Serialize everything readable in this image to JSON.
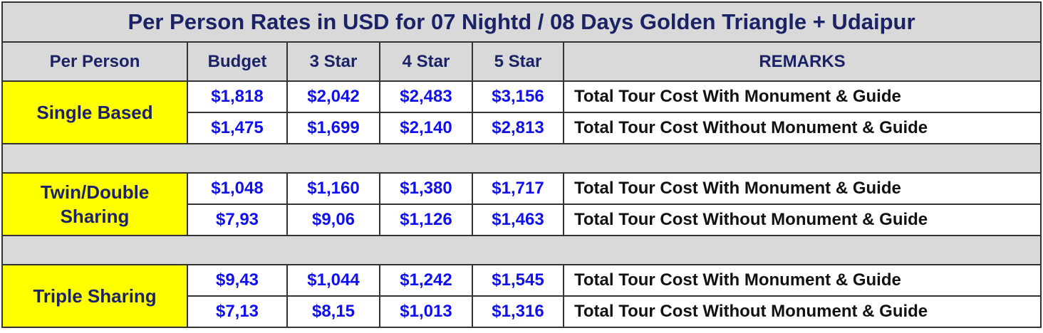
{
  "title": "Per Person Rates in USD for 07 Nightd / 08 Days Golden Triangle + Udaipur",
  "table": {
    "header": [
      "Per Person",
      "Budget",
      "3 Star",
      "4 Star",
      "5 Star",
      "REMARKS"
    ],
    "groups": [
      {
        "label": "Single Based",
        "rows": [
          [
            "$1,818",
            "$2,042",
            "$2,483",
            "$3,156",
            "Total Tour Cost With Monument & Guide"
          ],
          [
            "$1,475",
            "$1,699",
            "$2,140",
            "$2,813",
            "Total Tour Cost Without Monument & Guide"
          ]
        ]
      },
      {
        "label": "Twin/Double Sharing",
        "rows": [
          [
            "$1,048",
            "$1,160",
            "$1,380",
            "$1,717",
            "Total Tour Cost With Monument & Guide"
          ],
          [
            "$7,93",
            "$9,06",
            "$1,126",
            "$1,463",
            "Total Tour Cost Without Monument & Guide"
          ]
        ]
      },
      {
        "label": "Triple Sharing",
        "rows": [
          [
            "$9,43",
            "$1,044",
            "$1,242",
            "$1,545",
            "Total Tour Cost With Monument & Guide"
          ],
          [
            "$7,13",
            "$8,15",
            "$1,013",
            "$1,316",
            "Total Tour Cost Without Monument & Guide"
          ]
        ]
      }
    ]
  }
}
